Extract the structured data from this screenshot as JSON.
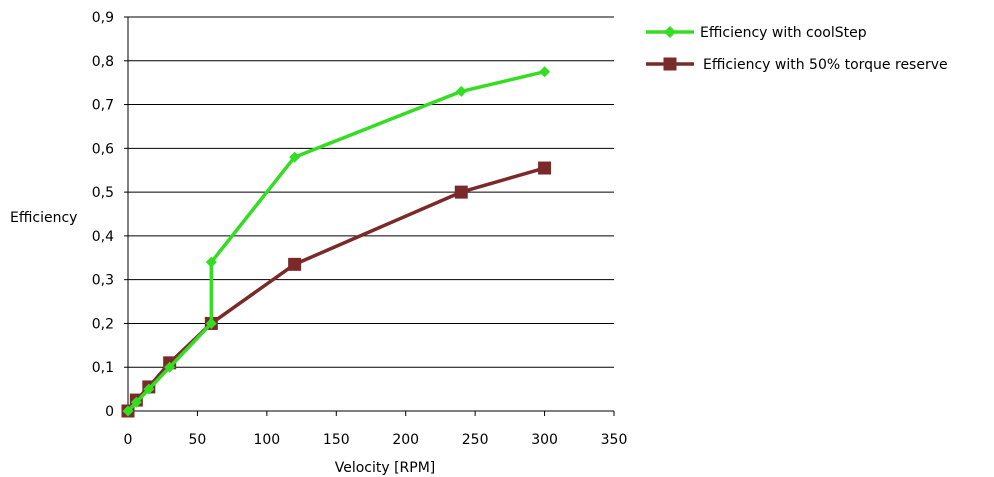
{
  "chart_data": {
    "type": "line",
    "title": "",
    "xlabel": "Velocity [RPM]",
    "ylabel": "Efficiency",
    "xlim": [
      0,
      350
    ],
    "ylim": [
      0,
      0.9
    ],
    "xticks": [
      0,
      50,
      100,
      150,
      200,
      250,
      300,
      350
    ],
    "yticks": [
      0,
      0.1,
      0.2,
      0.3,
      0.4,
      0.5,
      0.6,
      0.7,
      0.8,
      0.9
    ],
    "xtick_labels": [
      "0",
      "50",
      "100",
      "150",
      "200",
      "250",
      "300",
      "350"
    ],
    "ytick_labels": [
      "0",
      "0,1",
      "0,2",
      "0,3",
      "0,4",
      "0,5",
      "0,6",
      "0,7",
      "0,8",
      "0,9"
    ],
    "grid": "horizontal",
    "legend_position": "right",
    "series": [
      {
        "name": "Efficiency with coolStep",
        "color": "#33dd22",
        "marker": "diamond",
        "x": [
          0,
          6,
          15,
          30,
          60,
          60,
          120,
          240,
          300
        ],
        "y": [
          0.0,
          0.02,
          0.05,
          0.1,
          0.2,
          0.34,
          0.58,
          0.73,
          0.775
        ]
      },
      {
        "name": "Efficiency with 50% torque reserve",
        "color": "#7b2a2a",
        "marker": "square",
        "x": [
          0,
          6,
          15,
          30,
          60,
          120,
          240,
          300
        ],
        "y": [
          0.0,
          0.025,
          0.055,
          0.11,
          0.2,
          0.335,
          0.5,
          0.555
        ]
      }
    ]
  }
}
